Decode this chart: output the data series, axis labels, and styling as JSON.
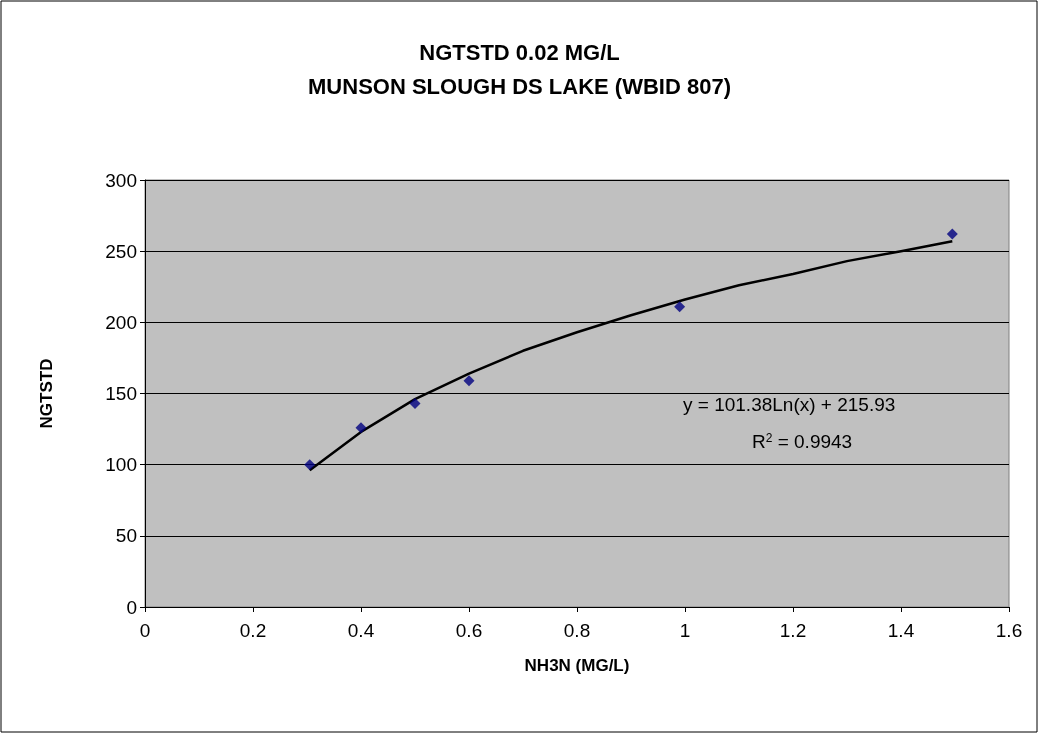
{
  "chart_data": {
    "type": "scatter",
    "title": "NGTSTD 0.02 MG/L\nMUNSON SLOUGH DS LAKE (WBID 807)",
    "xlabel": "NH3N (MG/L)",
    "ylabel": "NGTSTD",
    "series": [
      {
        "color": "#000080",
        "x": [
          0.305,
          0.4,
          0.5,
          0.6,
          0.99,
          1.495
        ],
        "values": [
          100,
          126,
          143,
          159,
          211,
          262
        ]
      },
      {
        "type": "line",
        "color": "#000000",
        "marker": "none",
        "x": [
          0.305,
          0.4,
          0.5,
          0.6,
          0.7,
          0.8,
          0.9,
          1.0,
          1.1,
          1.2,
          1.3,
          1.4,
          1.495
        ],
        "values": [
          96,
          123,
          146,
          164,
          180,
          193,
          205,
          216,
          226,
          234,
          243,
          250,
          257
        ]
      }
    ],
    "annotations": [
      "y = 101.38Ln(x) + 215.93",
      "R$^{2}$ = 0.9943"
    ],
    "xlim": [
      0,
      1.6
    ],
    "xticks": [
      0,
      0.2,
      0.4,
      0.6,
      0.8,
      1,
      1.2,
      1.4,
      1.6
    ],
    "ylim": [
      0,
      300
    ],
    "yticks": [
      0,
      50,
      100,
      150,
      200,
      250,
      300
    ],
    "grid": "y",
    "marker": "diamond"
  }
}
